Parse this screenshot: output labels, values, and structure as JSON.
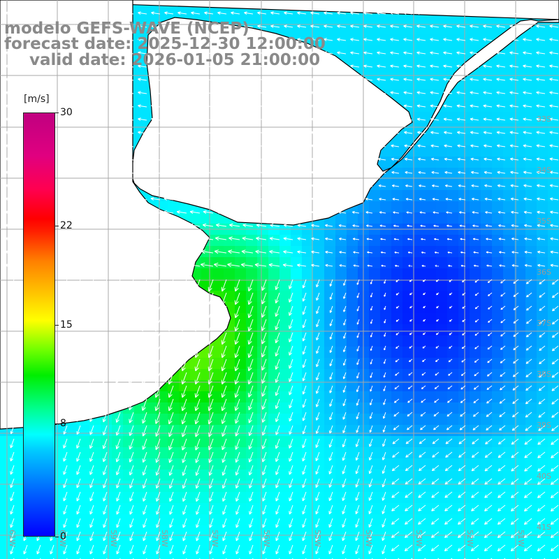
{
  "title": {
    "model": "modelo GEFS-WAVE (NCEP)",
    "forecast": "forecast date: 2025-12-30 12:00:00",
    "valid": "valid date: 2026-01-05 21:00:00"
  },
  "colorbar": {
    "units": "[m/s]",
    "ticks": [
      {
        "value": 30,
        "label": "30"
      },
      {
        "value": 22,
        "label": "22"
      },
      {
        "value": 15,
        "label": "15"
      },
      {
        "value": 8,
        "label": "8"
      },
      {
        "value": 0,
        "label": "0"
      }
    ],
    "min": 0,
    "max": 30
  },
  "map": {
    "lon_range": [
      -62,
      -51
    ],
    "lat_range": [
      -41.5,
      -30.5
    ],
    "lat_labels": [
      "33S",
      "34S",
      "35S",
      "36S",
      "37S",
      "38S",
      "39S",
      "40S",
      "41S"
    ],
    "lon_labels": [
      "61W",
      "60W",
      "59W",
      "58W",
      "57W",
      "56W",
      "55W",
      "54W",
      "53W",
      "52W",
      "51W"
    ],
    "colors": {
      "land": "#ffffff",
      "coast": "#000000",
      "grid": "#a8a8a8",
      "arrow": "#ffffff",
      "label": "#9a9a9a"
    }
  }
}
